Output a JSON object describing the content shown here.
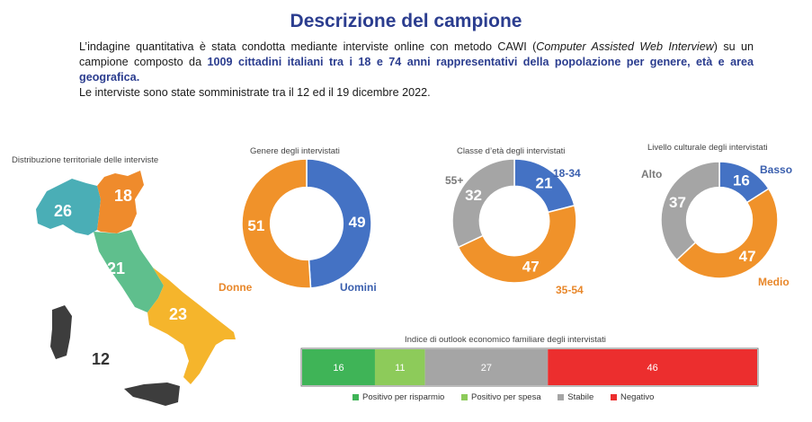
{
  "header": {
    "title": "Descrizione del campione",
    "intro_1": "L’indagine quantitativa è stata condotta mediante interviste online con metodo CAWI (",
    "intro_italic": "Computer Assisted Web Interview",
    "intro_2": ") su un campione composto da ",
    "intro_highlight": "1009 cittadini italiani tra i 18 e 74 anni rappresentativi della popolazione per genere, età e area geografica.",
    "intro_dates": "Le interviste sono state somministrate tra il 12 ed il 19 dicembre 2022."
  },
  "colors": {
    "blue": "#4472c4",
    "orange": "#f0922a",
    "gray": "#a5a5a5",
    "teal": "#4aaeb6",
    "map_orange": "#ef8b2c",
    "map_green": "#5fbf8d",
    "map_yellow": "#f5b52c",
    "dark": "#3d3d3d",
    "bar_green_dark": "#3fb457",
    "bar_green_light": "#8dcb5a",
    "bar_red": "#ec2e2e"
  },
  "chart_data": [
    {
      "type": "map",
      "title": "Distribuzione territoriale delle interviste",
      "categories": [
        "Nord-Ovest",
        "Nord-Est",
        "Centro",
        "Sud",
        "Isole"
      ],
      "values": [
        26,
        18,
        21,
        23,
        12
      ]
    },
    {
      "type": "pie",
      "title": "Genere degli intervistati",
      "categories": [
        "Uomini",
        "Donne"
      ],
      "values": [
        49,
        51
      ]
    },
    {
      "type": "pie",
      "title": "Classe d’età degli intervistati",
      "categories": [
        "18-34",
        "35-54",
        "55+"
      ],
      "values": [
        21,
        47,
        32
      ]
    },
    {
      "type": "pie",
      "title": "Livello culturale degli intervistati",
      "categories": [
        "Basso",
        "Medio",
        "Alto"
      ],
      "values": [
        16,
        47,
        37
      ]
    },
    {
      "type": "bar",
      "title": "Indice di outlook economico familiare degli intervistati",
      "categories": [
        "Positivo per risparmio",
        "Positivo per spesa",
        "Stabile",
        "Negativo"
      ],
      "values": [
        16,
        11,
        27,
        46
      ]
    }
  ]
}
